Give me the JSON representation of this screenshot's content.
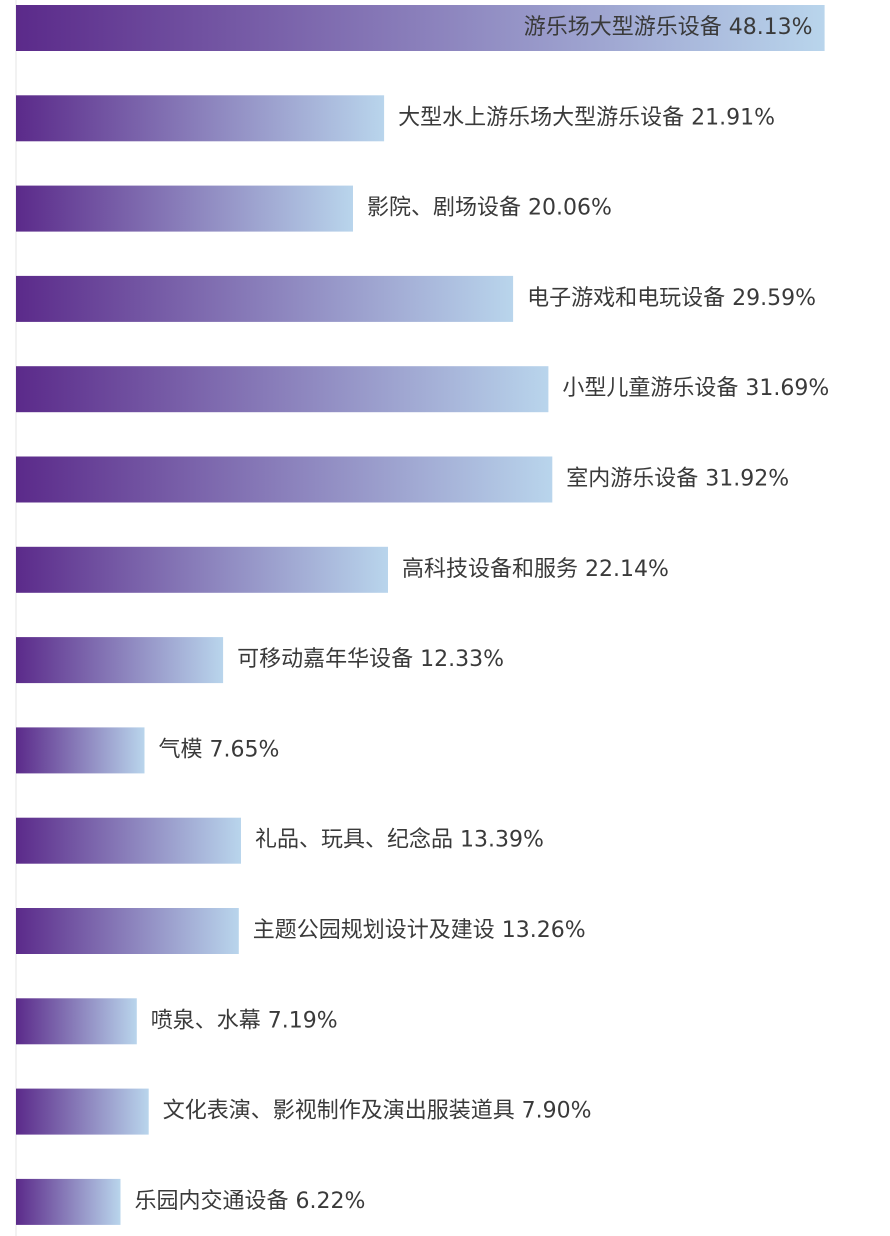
{
  "chart_data": {
    "type": "bar",
    "orientation": "horizontal",
    "categories": [
      "游乐场大型游乐设备",
      "大型水上游乐场大型游乐设备",
      "影院、剧场设备",
      "电子游戏和电玩设备",
      "小型儿童游乐设备",
      "室内游乐设备",
      "高科技设备和服务",
      "可移动嘉年华设备",
      "气模",
      "礼品、玩具、纪念品",
      "主题公园规划设计及建设",
      "喷泉、水幕",
      "文化表演、影视制作及演出服装道具",
      "乐园内交通设备"
    ],
    "values": [
      48.13,
      21.91,
      20.06,
      29.59,
      31.69,
      31.92,
      22.14,
      12.33,
      7.65,
      13.39,
      13.26,
      7.19,
      7.9,
      6.22
    ],
    "labels": [
      "游乐场大型游乐设备 48.13%",
      "大型水上游乐场大型游乐设备 21.91%",
      "影院、剧场设备 20.06%",
      "电子游戏和电玩设备 29.59%",
      "小型儿童游乐设备 31.69%",
      "室内游乐设备 31.92%",
      "高科技设备和服务 22.14%",
      "可移动嘉年华设备 12.33%",
      "气模 7.65%",
      "礼品、玩具、纪念品 13.39%",
      "主题公园规划设计及建设 13.26%",
      "喷泉、水幕 7.19%",
      "文化表演、影视制作及演出服装道具 7.90%",
      "乐园内交通设备 6.22%"
    ],
    "unit": "%",
    "title": "",
    "xlabel": "",
    "ylabel": "",
    "grid": false,
    "legend": "none",
    "colors": {
      "bar_start": "#5b2a8a",
      "bar_end": "#b9d5ec",
      "label": "#3a3a3a",
      "axis_line": "#e6e6e6"
    }
  }
}
